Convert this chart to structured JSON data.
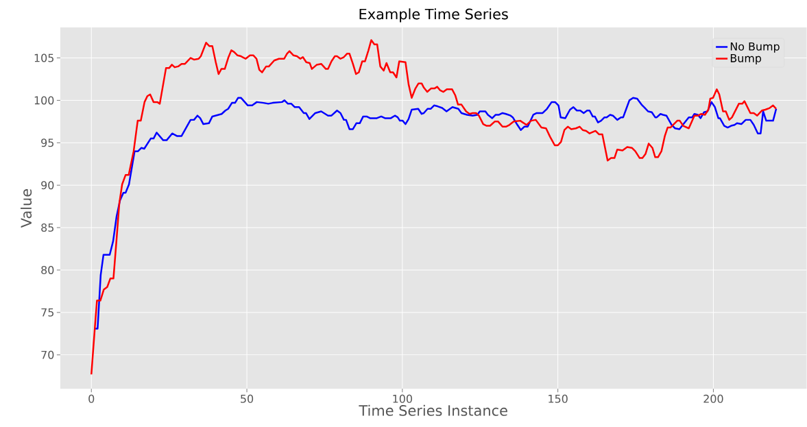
{
  "chart_data": {
    "type": "line",
    "title": "Example Time Series",
    "xlabel": "Time Series Instance",
    "ylabel": "Value",
    "xlim": [
      -10,
      230
    ],
    "ylim": [
      66,
      108.6
    ],
    "xticks": [
      0,
      50,
      100,
      150,
      200
    ],
    "yticks": [
      70,
      75,
      80,
      85,
      90,
      95,
      100,
      105
    ],
    "grid": true,
    "legend": "top right",
    "marker": "none",
    "line_style": "solid",
    "series": [
      {
        "name": "No Bump",
        "color": "#0000ff",
        "x": [
          1,
          2,
          3,
          3.9,
          5.9,
          7,
          8.1,
          9.2,
          10.3,
          11,
          12.1,
          13.9,
          15,
          16.1,
          17,
          19.1,
          20,
          21,
          23.1,
          24.2,
          26,
          27.5,
          29,
          31.9,
          33,
          34.1,
          35,
          36,
          37.8,
          38.9,
          41.9,
          43.1,
          44,
          45.2,
          46.2,
          47.2,
          48.1,
          50.3,
          51.7,
          53.2,
          55.4,
          56.9,
          58.3,
          61.3,
          62.1,
          63.2,
          64.3,
          65.4,
          66.8,
          68.3,
          69,
          70.1,
          72,
          73.9,
          76.1,
          77.2,
          79,
          80.1,
          81.2,
          81.9,
          83,
          84.1,
          85.2,
          86.3,
          87.4,
          88.5,
          89.6,
          91.8,
          93.2,
          94.4,
          96.3,
          97.6,
          98.5,
          99.2,
          100.1,
          101,
          102,
          103,
          105.1,
          106.2,
          106.9,
          108.1,
          109.1,
          110.2,
          111.3,
          112.8,
          114.2,
          116.1,
          118,
          119,
          120.8,
          122.6,
          124.1,
          124.9,
          126.7,
          127.5,
          128.9,
          130,
          131.1,
          132.2,
          133.3,
          134.8,
          135.5,
          137,
          138.1,
          139.2,
          140.3,
          142.1,
          143.2,
          145.1,
          146.5,
          148,
          149.1,
          150.2,
          150.9,
          152.4,
          153.9,
          155,
          156.1,
          157.2,
          158.3,
          159.4,
          160.2,
          161.2,
          161.9,
          162.9,
          163.9,
          165,
          165.7,
          166.8,
          167.7,
          169.1,
          170.3,
          171,
          172,
          173,
          174.2,
          175.5,
          176.9,
          178,
          179,
          180.2,
          181.3,
          181.8,
          183,
          183.8,
          184.9,
          186.6,
          187.7,
          189.1,
          190.6,
          192.1,
          193.2,
          193.9,
          195,
          195.9,
          197,
          198.1,
          199.4,
          200.5,
          201.6,
          202.1,
          203.5,
          204.6,
          205.7,
          206.8,
          207.6,
          209,
          210.4,
          211.9,
          213,
          214.3,
          215.2,
          216,
          217,
          219.2,
          220.2
        ],
        "values": [
          73.1,
          73.1,
          79.4,
          81.8,
          81.8,
          83.4,
          86.3,
          88.2,
          89.1,
          89.1,
          90.1,
          94.0,
          94.0,
          94.4,
          94.3,
          95.5,
          95.5,
          96.2,
          95.3,
          95.3,
          96.1,
          95.8,
          95.8,
          97.7,
          97.7,
          98.2,
          97.9,
          97.2,
          97.3,
          98.1,
          98.4,
          98.8,
          99.0,
          99.7,
          99.7,
          100.3,
          100.3,
          99.4,
          99.4,
          99.8,
          99.7,
          99.6,
          99.7,
          99.8,
          100.0,
          99.6,
          99.6,
          99.2,
          99.2,
          98.5,
          98.5,
          97.8,
          98.5,
          98.7,
          98.2,
          98.2,
          98.8,
          98.5,
          97.7,
          97.7,
          96.6,
          96.6,
          97.3,
          97.3,
          98.1,
          98.1,
          97.9,
          97.9,
          98.1,
          97.9,
          97.9,
          98.2,
          98.0,
          97.6,
          97.6,
          97.2,
          97.8,
          98.9,
          99.0,
          98.4,
          98.5,
          99.0,
          99.0,
          99.4,
          99.3,
          99.1,
          98.7,
          99.2,
          99.0,
          98.5,
          98.3,
          98.2,
          98.3,
          98.7,
          98.7,
          98.3,
          97.9,
          98.3,
          98.3,
          98.5,
          98.4,
          98.2,
          98.0,
          97.1,
          96.5,
          96.9,
          96.9,
          98.3,
          98.5,
          98.5,
          99.0,
          99.8,
          99.8,
          99.4,
          98.0,
          97.9,
          98.9,
          99.2,
          98.8,
          98.8,
          98.5,
          98.8,
          98.8,
          98.1,
          98.1,
          97.4,
          97.6,
          98.0,
          98.0,
          98.3,
          98.2,
          97.7,
          98.0,
          98.0,
          99.0,
          100.0,
          100.3,
          100.2,
          99.5,
          99.1,
          98.7,
          98.6,
          98.0,
          98.0,
          98.4,
          98.3,
          98.2,
          97.1,
          96.7,
          96.6,
          97.3,
          98.0,
          98.0,
          98.4,
          98.3,
          97.9,
          98.6,
          98.7,
          99.8,
          99.2,
          97.9,
          97.9,
          97.0,
          96.8,
          97.0,
          97.1,
          97.3,
          97.2,
          97.7,
          97.7,
          97.1,
          96.1,
          96.1,
          98.7,
          97.6,
          97.6,
          99.0
        ]
      },
      {
        "name": "Bump",
        "color": "#ff0000",
        "x": [
          0,
          1.1,
          1.8,
          2.9,
          4,
          5.1,
          6.1,
          7.1,
          8.1,
          9,
          9.9,
          11,
          12,
          13.6,
          14.9,
          15.9,
          17.1,
          18,
          18.9,
          20,
          21.2,
          22,
          24,
          25,
          25.9,
          26.8,
          27.9,
          29,
          30.1,
          31.9,
          33,
          34.5,
          35.2,
          36.9,
          37.9,
          38.9,
          40,
          40.9,
          41.8,
          42.9,
          44,
          45,
          45.9,
          47,
          48.1,
          49.6,
          51,
          52.1,
          53.1,
          54,
          54.9,
          56.2,
          57.1,
          58.8,
          60.3,
          62,
          62.9,
          63.7,
          65,
          66.1,
          67.2,
          68,
          69.1,
          70.2,
          70.9,
          72.5,
          73.9,
          75.4,
          76.1,
          77.2,
          78.3,
          79,
          80.1,
          81.2,
          82.2,
          83,
          84.1,
          85.1,
          86,
          87.1,
          88,
          89.1,
          90,
          91,
          91.9,
          92.9,
          94,
          94.9,
          96.1,
          97,
          98.1,
          99,
          101,
          102,
          103,
          104.2,
          105.2,
          106.2,
          106.9,
          108,
          109.2,
          110.3,
          111.2,
          112.1,
          113.2,
          114.3,
          116,
          117,
          117.9,
          119,
          120.5,
          121.6,
          122.6,
          123.7,
          124.6,
          126,
          127.1,
          128.2,
          129.7,
          130.8,
          132.2,
          133.3,
          134.4,
          135.8,
          137.9,
          139.9,
          141.4,
          142.9,
          144.7,
          146.2,
          147.5,
          149,
          150,
          151,
          152.1,
          153.2,
          154.3,
          155.8,
          157,
          158,
          159.1,
          160.2,
          162.1,
          163.2,
          164.3,
          166,
          167.1,
          168.2,
          169.1,
          170.8,
          172.3,
          173.8,
          174.9,
          176.3,
          177.2,
          178.2,
          179.2,
          180.4,
          181.3,
          182.2,
          183.3,
          184.4,
          185.3,
          186.2,
          187.3,
          188.4,
          189.2,
          190.3,
          192.1,
          193.9,
          195.1,
          196.1,
          197.3,
          198.4,
          199,
          199.9,
          201.1,
          201.9,
          203.1,
          204,
          205.1,
          206,
          208.2,
          209.3,
          210,
          211.9,
          213,
          214.1,
          215.6,
          216.7,
          218.1,
          219.2,
          220.2
        ],
        "values": [
          67.7,
          73.1,
          76.4,
          76.4,
          77.7,
          78.0,
          79.0,
          79.0,
          83.6,
          87.9,
          90.1,
          91.2,
          91.2,
          94.0,
          97.6,
          97.6,
          99.8,
          100.5,
          100.7,
          99.8,
          99.8,
          99.6,
          103.8,
          103.8,
          104.2,
          103.9,
          104.0,
          104.3,
          104.3,
          105.0,
          104.8,
          104.9,
          105.2,
          106.8,
          106.4,
          106.4,
          104.5,
          103.1,
          103.7,
          103.7,
          105.0,
          105.9,
          105.7,
          105.3,
          105.2,
          104.9,
          105.3,
          105.3,
          104.9,
          103.6,
          103.3,
          104.0,
          104.0,
          104.7,
          104.9,
          104.9,
          105.5,
          105.8,
          105.3,
          105.2,
          104.9,
          105.1,
          104.5,
          104.4,
          103.7,
          104.2,
          104.3,
          103.7,
          103.7,
          104.6,
          105.2,
          105.2,
          104.9,
          105.1,
          105.5,
          105.5,
          104.3,
          103.1,
          103.3,
          104.6,
          104.6,
          105.9,
          107.1,
          106.6,
          106.6,
          104.0,
          103.5,
          104.4,
          103.3,
          103.3,
          102.7,
          104.6,
          104.5,
          101.9,
          100.3,
          101.4,
          102.0,
          102.0,
          101.5,
          101.0,
          101.4,
          101.4,
          101.6,
          101.2,
          101.0,
          101.3,
          101.3,
          100.6,
          99.5,
          99.5,
          98.7,
          98.4,
          98.5,
          98.5,
          98.2,
          97.2,
          97.0,
          97.0,
          97.5,
          97.5,
          96.9,
          96.9,
          97.1,
          97.5,
          97.6,
          97.1,
          97.6,
          97.7,
          96.8,
          96.7,
          95.7,
          94.7,
          94.7,
          95.1,
          96.5,
          96.9,
          96.6,
          96.7,
          96.9,
          96.5,
          96.4,
          96.1,
          96.4,
          96.0,
          96.0,
          92.9,
          93.2,
          93.2,
          94.2,
          94.1,
          94.5,
          94.4,
          94.0,
          93.2,
          93.2,
          93.7,
          94.9,
          94.4,
          93.3,
          93.3,
          94.0,
          95.8,
          96.8,
          96.8,
          97.2,
          97.6,
          97.6,
          97.0,
          96.7,
          98.2,
          98.2,
          98.4,
          98.3,
          98.9,
          100.2,
          100.3,
          101.3,
          100.7,
          98.7,
          98.7,
          97.7,
          98.0,
          99.6,
          99.6,
          99.9,
          98.5,
          98.5,
          98.2,
          98.8,
          98.9,
          99.1,
          99.4,
          99.0
        ]
      }
    ]
  }
}
